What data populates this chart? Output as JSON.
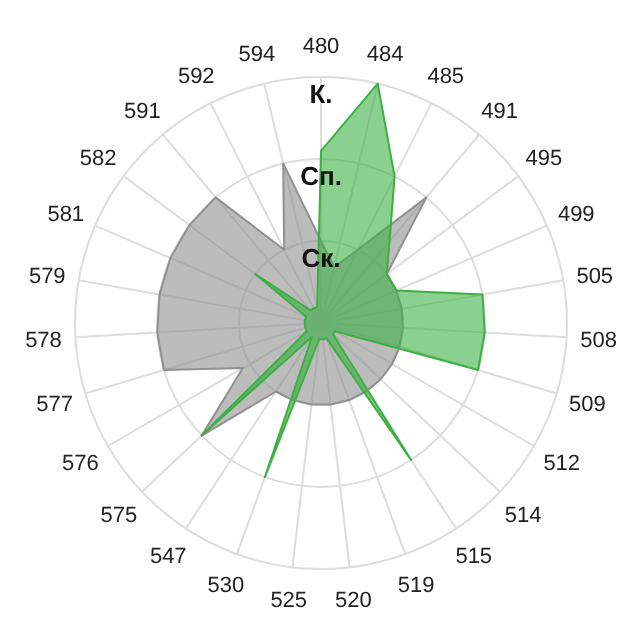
{
  "chart_data": {
    "type": "radar",
    "categories": [
      "480",
      "484",
      "485",
      "491",
      "495",
      "499",
      "505",
      "508",
      "509",
      "512",
      "514",
      "515",
      "519",
      "520",
      "525",
      "530",
      "547",
      "575",
      "576",
      "577",
      "578",
      "579",
      "581",
      "582",
      "591",
      "592",
      "594"
    ],
    "series": [
      {
        "color": "#909090",
        "values": [
          1.0,
          0.7,
          1.0,
          2.0,
          1.0,
          1.0,
          1.0,
          1.0,
          1.0,
          1.0,
          1.0,
          1.0,
          1.0,
          1.0,
          1.0,
          1.0,
          1.0,
          2.0,
          1.1,
          2.0,
          2.0,
          2.0,
          2.0,
          2.0,
          2.0,
          1.0,
          2.0
        ]
      },
      {
        "color": "#3cb043",
        "values": [
          2.1,
          3.0,
          2.0,
          1.3,
          1.0,
          1.0,
          2.0,
          2.0,
          2.0,
          0.2,
          0.2,
          2.0,
          0.2,
          0.2,
          0.2,
          2.0,
          0.2,
          2.0,
          0.2,
          0.2,
          0.2,
          0.2,
          0.2,
          1.0,
          0.2,
          0.2,
          0.2
        ]
      }
    ],
    "ylim": [
      0,
      3
    ],
    "yticks": [
      {
        "value": 1,
        "label": "Ск."
      },
      {
        "value": 2,
        "label": "Сп."
      },
      {
        "value": 3,
        "label": "К."
      }
    ],
    "grid": true
  }
}
